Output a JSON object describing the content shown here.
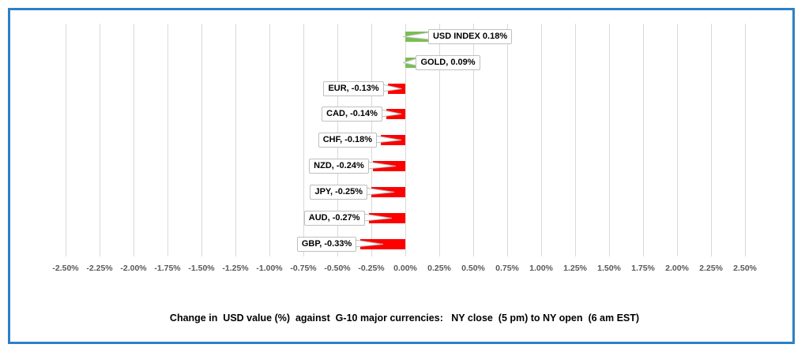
{
  "chart_data": {
    "type": "bar",
    "orientation": "horizontal",
    "title": "Change in  USD value (%)  against  G-10 major currencies:   NY close  (5 pm) to NY open  (6 am EST)",
    "categories": [
      "USD INDEX",
      "GOLD",
      "EUR",
      "CAD",
      "CHF",
      "NZD",
      "JPY",
      "AUD",
      "GBP"
    ],
    "values": [
      0.18,
      0.09,
      -0.13,
      -0.14,
      -0.18,
      -0.24,
      -0.25,
      -0.27,
      -0.33
    ],
    "data_labels": [
      "USD INDEX 0.18%",
      "GOLD, 0.09%",
      "EUR, -0.13%",
      "CAD, -0.14%",
      "CHF, -0.18%",
      "NZD, -0.24%",
      "JPY, -0.25%",
      "AUD, -0.27%",
      "GBP, -0.33%"
    ],
    "xlabel": "",
    "ylabel": "",
    "xlim": [
      -2.5,
      2.5
    ],
    "tick_step": 0.25,
    "x_ticks": [
      "-2.50%",
      "-2.25%",
      "-2.00%",
      "-1.75%",
      "-1.50%",
      "-1.25%",
      "-1.00%",
      "-0.75%",
      "-0.50%",
      "-0.25%",
      "0.00%",
      "0.25%",
      "0.50%",
      "0.75%",
      "1.00%",
      "1.25%",
      "1.50%",
      "1.75%",
      "2.00%",
      "2.25%",
      "2.50%"
    ],
    "grid": true,
    "legend": false,
    "colors": {
      "positive_bar": "#79BE51",
      "negative_bar": "#FE0000",
      "gridline": "#D9D9D9",
      "axis_text": "#595959",
      "label_border": "#BFBFBF",
      "label_background": "#FFFFFF",
      "frame_border": "#2E80C4"
    }
  }
}
